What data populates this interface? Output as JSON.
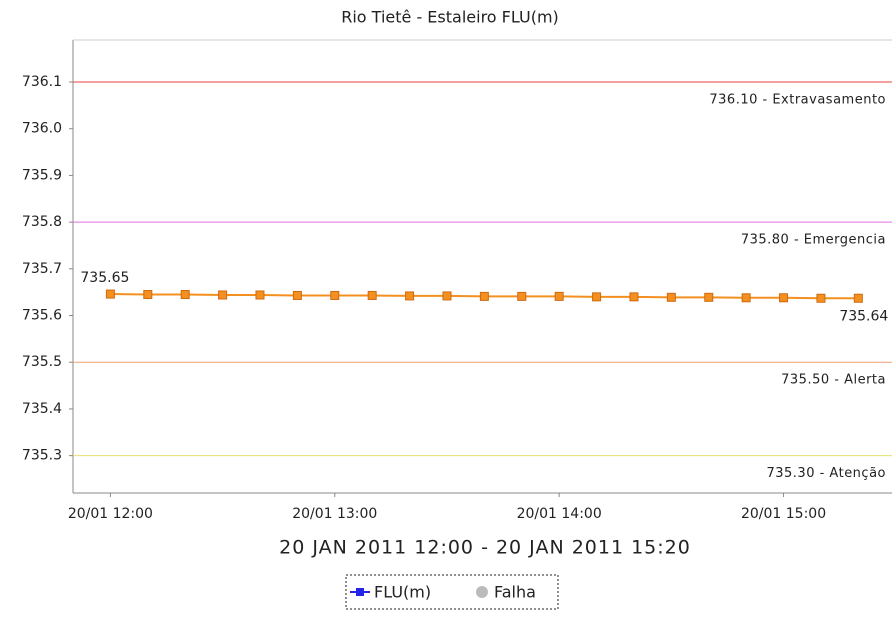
{
  "chart_data": {
    "type": "line",
    "title": "Rio Tietê - Estaleiro FLU(m)",
    "subtitle": "20 JAN 2011 12:00 - 20 JAN 2011 15:20",
    "x": [
      "2011-01-20 12:00",
      "2011-01-20 12:10",
      "2011-01-20 12:20",
      "2011-01-20 12:30",
      "2011-01-20 12:40",
      "2011-01-20 12:50",
      "2011-01-20 13:00",
      "2011-01-20 13:10",
      "2011-01-20 13:20",
      "2011-01-20 13:30",
      "2011-01-20 13:40",
      "2011-01-20 13:50",
      "2011-01-20 14:00",
      "2011-01-20 14:10",
      "2011-01-20 14:20",
      "2011-01-20 14:30",
      "2011-01-20 14:40",
      "2011-01-20 14:50",
      "2011-01-20 15:00",
      "2011-01-20 15:10",
      "2011-01-20 15:20"
    ],
    "series": [
      {
        "color": "#f39020",
        "values": [
          735.646,
          735.645,
          735.645,
          735.644,
          735.644,
          735.643,
          735.643,
          735.643,
          735.642,
          735.642,
          735.641,
          735.641,
          735.641,
          735.64,
          735.64,
          735.639,
          735.639,
          735.638,
          735.638,
          735.637,
          735.637
        ],
        "value_labels": [
          "735.65",
          null,
          null,
          null,
          null,
          null,
          null,
          null,
          null,
          null,
          null,
          null,
          null,
          null,
          null,
          null,
          null,
          null,
          null,
          null,
          "735.64"
        ]
      }
    ],
    "legend": [
      {
        "name": "FLU(m)",
        "color": "#2424e8"
      },
      {
        "name": "Falha",
        "color": "#bbbbbb"
      }
    ],
    "thresholds": [
      {
        "value": 736.1,
        "label": "736.10 - Extravasamento",
        "color": "#e84040"
      },
      {
        "value": 735.8,
        "label": "735.80 - Emergencia",
        "color": "#e070e0"
      },
      {
        "value": 735.5,
        "label": "735.50 - Alerta",
        "color": "#f0a070"
      },
      {
        "value": 735.3,
        "label": "735.30 - Atenção",
        "color": "#e8e070"
      }
    ],
    "xlim": [
      "2011-01-20 11:50",
      "2011-01-20 15:29"
    ],
    "xticks": [
      {
        "value": "2011-01-20 12:00",
        "label": "20/01 12:00"
      },
      {
        "value": "2011-01-20 13:00",
        "label": "20/01 13:00"
      },
      {
        "value": "2011-01-20 14:00",
        "label": "20/01 14:00"
      },
      {
        "value": "2011-01-20 15:00",
        "label": "20/01 15:00"
      }
    ],
    "ylim": [
      735.22,
      736.19
    ],
    "yticks": [
      735.3,
      735.4,
      735.5,
      735.6,
      735.7,
      735.8,
      735.9,
      {
        "value": 736,
        "label": "736.0"
      },
      736.1
    ]
  }
}
